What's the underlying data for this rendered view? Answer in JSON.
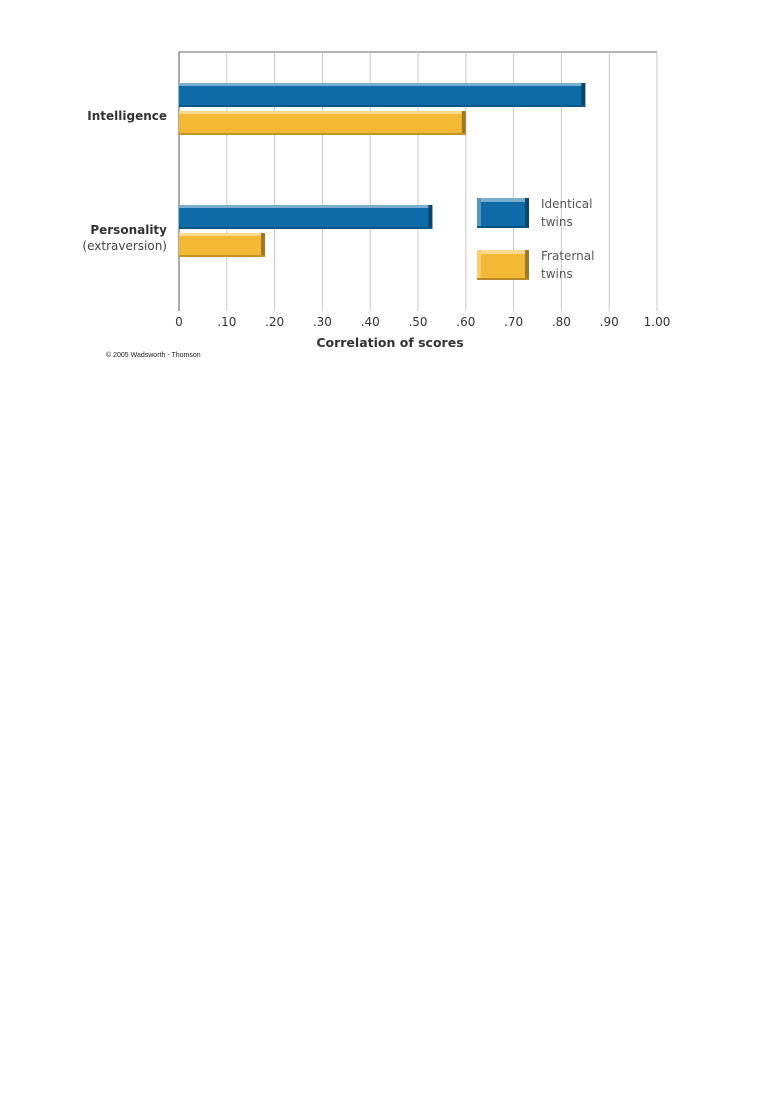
{
  "chart_data": {
    "type": "bar",
    "orientation": "horizontal",
    "categories": [
      {
        "label": "Intelligence",
        "sublabel": ""
      },
      {
        "label": "Personality",
        "sublabel": "(extraversion)"
      }
    ],
    "series": [
      {
        "name": "Identical twins",
        "name_lines": [
          "Identical",
          "twins"
        ],
        "color": "#0f6aa8",
        "values": [
          0.85,
          0.53
        ]
      },
      {
        "name": "Fraternal twins",
        "name_lines": [
          "Fraternal",
          "twins"
        ],
        "color": "#f3b934",
        "values": [
          0.6,
          0.18
        ]
      }
    ],
    "xlabel": "Correlation of scores",
    "xlim": [
      0,
      1.0
    ],
    "xticks": [
      0,
      0.1,
      0.2,
      0.3,
      0.4,
      0.5,
      0.6,
      0.7,
      0.8,
      0.9,
      1.0
    ],
    "xtick_labels": [
      "0",
      ".10",
      ".20",
      ".30",
      ".40",
      ".50",
      ".60",
      ".70",
      ".80",
      ".90",
      "1.00"
    ],
    "grid": true,
    "legend_position": "lower-right"
  },
  "copyright": "© 2005 Wadsworth - Thomson"
}
